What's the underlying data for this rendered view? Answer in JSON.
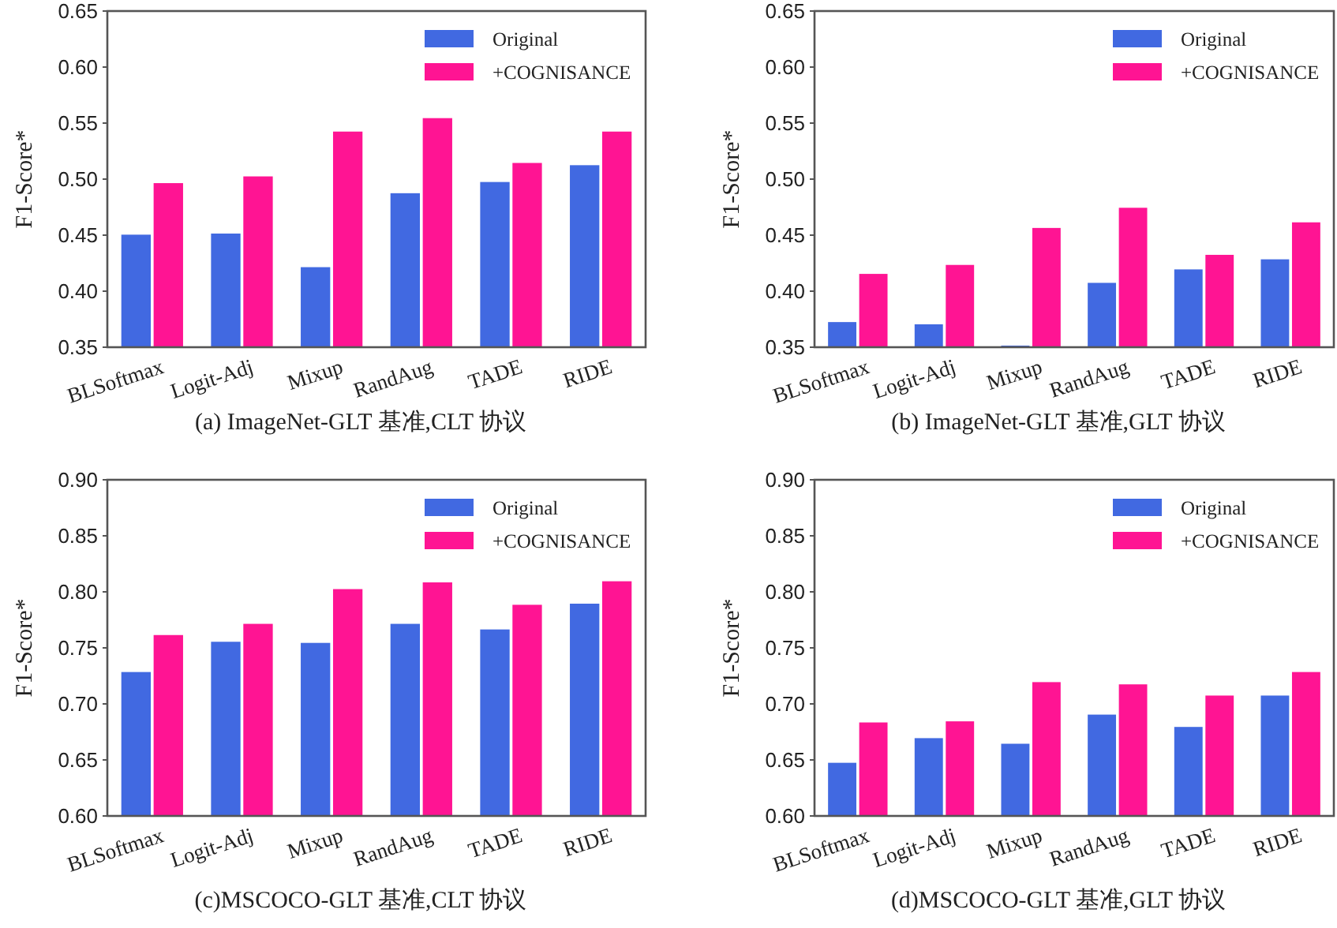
{
  "chart_data": [
    {
      "type": "bar",
      "title": "(a) ImageNet-GLT 基准,CLT 协议",
      "ylabel": "F1-Score*",
      "categories": [
        "BLSoftmax",
        "Logit-Adj",
        "Mixup",
        "RandAug",
        "TADE",
        "RIDE"
      ],
      "series": [
        {
          "name": "Original",
          "color": "#4169e1",
          "values": [
            0.451,
            0.452,
            0.422,
            0.488,
            0.498,
            0.513
          ]
        },
        {
          "name": "+COGNISANCE",
          "color": "#ff1493",
          "values": [
            0.497,
            0.503,
            0.543,
            0.555,
            0.515,
            0.543
          ]
        }
      ],
      "ylim": [
        0.35,
        0.65
      ],
      "yticks": [
        0.35,
        {
          "value": 0.4,
          "label": "0.40"
        },
        0.45,
        {
          "value": 0.5,
          "label": "0.50"
        },
        0.55,
        {
          "value": 0.6,
          "label": "0.60"
        },
        0.65
      ],
      "legend": "top right"
    },
    {
      "type": "bar",
      "title": "(b) ImageNet-GLT 基准,GLT 协议",
      "ylabel": "F1-Score*",
      "categories": [
        "BLSoftmax",
        "Logit-Adj",
        "Mixup",
        "RandAug",
        "TADE",
        "RIDE"
      ],
      "series": [
        {
          "name": "Original",
          "color": "#4169e1",
          "values": [
            0.373,
            0.371,
            0.352,
            0.408,
            0.42,
            0.429
          ]
        },
        {
          "name": "+COGNISANCE",
          "color": "#ff1493",
          "values": [
            0.416,
            0.424,
            0.457,
            0.475,
            0.433,
            0.462
          ]
        }
      ],
      "ylim": [
        0.35,
        0.65
      ],
      "yticks": [
        0.35,
        {
          "value": 0.4,
          "label": "0.40"
        },
        0.45,
        {
          "value": 0.5,
          "label": "0.50"
        },
        0.55,
        {
          "value": 0.6,
          "label": "0.60"
        },
        0.65
      ],
      "legend": "top right"
    },
    {
      "type": "bar",
      "title": "(c)MSCOCO-GLT 基准,CLT 协议",
      "ylabel": "F1-Score*",
      "categories": [
        "BLSoftmax",
        "Logit-Adj",
        "Mixup",
        "RandAug",
        "TADE",
        "RIDE"
      ],
      "series": [
        {
          "name": "Original",
          "color": "#4169e1",
          "values": [
            0.729,
            0.756,
            0.755,
            0.772,
            0.767,
            0.79
          ]
        },
        {
          "name": "+COGNISANCE",
          "color": "#ff1493",
          "values": [
            0.762,
            0.772,
            0.803,
            0.809,
            0.789,
            0.81
          ]
        }
      ],
      "ylim": [
        0.6,
        0.9
      ],
      "yticks": [
        {
          "value": 0.6,
          "label": "0.60"
        },
        0.65,
        {
          "value": 0.7,
          "label": "0.70"
        },
        0.75,
        {
          "value": 0.8,
          "label": "0.80"
        },
        0.85,
        {
          "value": 0.9,
          "label": "0.90"
        }
      ],
      "legend": "top right"
    },
    {
      "type": "bar",
      "title": "(d)MSCOCO-GLT 基准,GLT 协议",
      "ylabel": "F1-Score*",
      "categories": [
        "BLSoftmax",
        "Logit-Adj",
        "Mixup",
        "RandAug",
        "TADE",
        "RIDE"
      ],
      "series": [
        {
          "name": "Original",
          "color": "#4169e1",
          "values": [
            0.648,
            0.67,
            0.665,
            0.691,
            0.68,
            0.708
          ]
        },
        {
          "name": "+COGNISANCE",
          "color": "#ff1493",
          "values": [
            0.684,
            0.685,
            0.72,
            0.718,
            0.708,
            0.729
          ]
        }
      ],
      "ylim": [
        0.6,
        0.9
      ],
      "yticks": [
        {
          "value": 0.6,
          "label": "0.60"
        },
        0.65,
        {
          "value": 0.7,
          "label": "0.70"
        },
        0.75,
        {
          "value": 0.8,
          "label": "0.80"
        },
        0.85,
        {
          "value": 0.9,
          "label": "0.90"
        }
      ],
      "legend": "top right"
    }
  ]
}
